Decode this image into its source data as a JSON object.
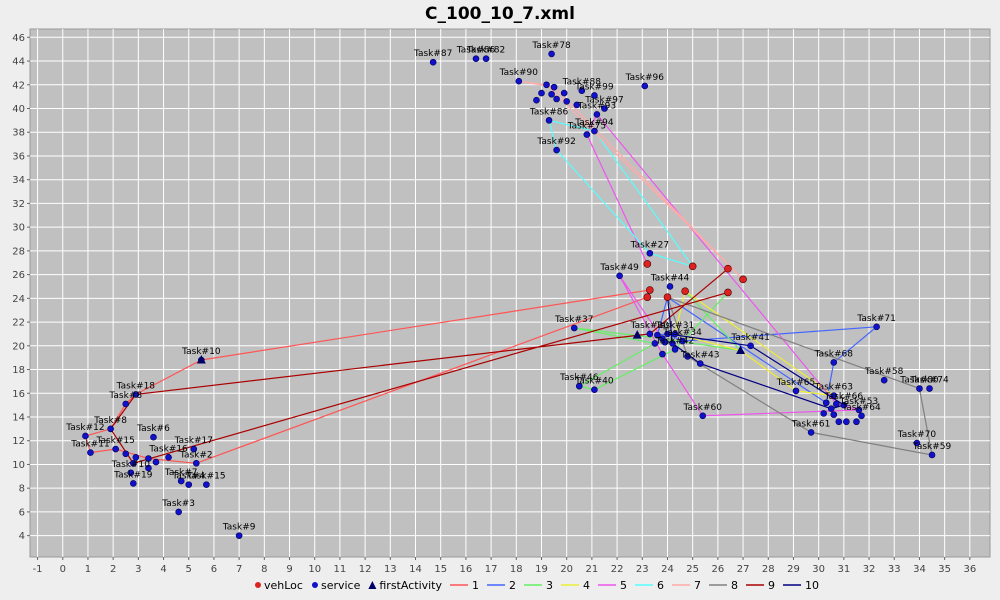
{
  "chart_data": {
    "type": "scatter",
    "title": "C_100_10_7.xml",
    "xlabel": "",
    "ylabel": "",
    "xlim": [
      -1.3,
      36.8
    ],
    "ylim": [
      2.2,
      46.7
    ],
    "xticks": [
      "-1",
      "0",
      "1",
      "2",
      "3",
      "4",
      "5",
      "6",
      "7",
      "8",
      "9",
      "10",
      "11",
      "12",
      "13",
      "14",
      "15",
      "16",
      "17",
      "18",
      "19",
      "20",
      "21",
      "22",
      "23",
      "24",
      "25",
      "26",
      "27",
      "28",
      "29",
      "30",
      "31",
      "32",
      "33",
      "34",
      "35",
      "36"
    ],
    "yticks": [
      "4",
      "6",
      "8",
      "10",
      "12",
      "14",
      "16",
      "18",
      "20",
      "22",
      "24",
      "26",
      "28",
      "30",
      "32",
      "34",
      "36",
      "38",
      "40",
      "42",
      "44",
      "46"
    ],
    "grid": true,
    "legend_position": "bottom",
    "colors": {
      "plot_bg": "#c0c0c0",
      "grid": "#ffffff",
      "vehLoc": "#ff0000",
      "service": "#0000ff",
      "firstActivity": "#00008b",
      "routes": {
        "1": "#ff5555",
        "2": "#4466ff",
        "3": "#66ee66",
        "4": "#eeee33",
        "5": "#ee55ee",
        "6": "#55ffff",
        "7": "#ffaaaa",
        "8": "#808080",
        "9": "#aa0000",
        "10": "#000080"
      }
    },
    "legend": [
      {
        "label": "vehLoc",
        "kind": "dot",
        "color": "#dd2222"
      },
      {
        "label": "service",
        "kind": "dot",
        "color": "#1111cc"
      },
      {
        "label": "firstActivity",
        "kind": "tri",
        "color": "#000066"
      },
      {
        "label": "1",
        "kind": "line",
        "color": "#ff5555"
      },
      {
        "label": "2",
        "kind": "line",
        "color": "#4466ff"
      },
      {
        "label": "3",
        "kind": "line",
        "color": "#66ee66"
      },
      {
        "label": "4",
        "kind": "line",
        "color": "#eeee33"
      },
      {
        "label": "5",
        "kind": "line",
        "color": "#ee55ee"
      },
      {
        "label": "6",
        "kind": "line",
        "color": "#55ffff"
      },
      {
        "label": "7",
        "kind": "line",
        "color": "#ffaaaa"
      },
      {
        "label": "8",
        "kind": "line",
        "color": "#808080"
      },
      {
        "label": "9",
        "kind": "line",
        "color": "#aa0000"
      },
      {
        "label": "10",
        "kind": "line",
        "color": "#000080"
      }
    ],
    "vehLoc": [
      [
        23.2,
        26.9
      ],
      [
        25.0,
        26.7
      ],
      [
        26.4,
        26.5
      ],
      [
        27.0,
        25.6
      ],
      [
        23.3,
        24.7
      ],
      [
        24.7,
        24.6
      ],
      [
        26.4,
        24.5
      ],
      [
        23.2,
        24.1
      ],
      [
        24.0,
        24.1
      ]
    ],
    "first_activity": [
      [
        5.5,
        18.8
      ],
      [
        22.8,
        20.9
      ],
      [
        26.9,
        19.6
      ]
    ],
    "services": [
      {
        "label": "Task#87",
        "x": 14.7,
        "y": 43.9
      },
      {
        "label": "Task#86",
        "x": 16.4,
        "y": 44.2
      },
      {
        "label": "Task#82",
        "x": 16.8,
        "y": 44.2
      },
      {
        "label": "Task#78",
        "x": 19.4,
        "y": 44.6
      },
      {
        "label": "Task#90",
        "x": 18.1,
        "y": 42.3
      },
      {
        "label": "Task#96",
        "x": 23.1,
        "y": 41.9
      },
      {
        "label": "Task#88",
        "x": 20.6,
        "y": 41.5
      },
      {
        "label": "",
        "x": 19.2,
        "y": 42.0
      },
      {
        "label": "",
        "x": 19.5,
        "y": 41.8
      },
      {
        "label": "Task#99",
        "x": 21.1,
        "y": 41.1
      },
      {
        "label": "",
        "x": 19.0,
        "y": 41.3
      },
      {
        "label": "",
        "x": 19.4,
        "y": 41.2
      },
      {
        "label": "",
        "x": 19.9,
        "y": 41.3
      },
      {
        "label": "",
        "x": 18.8,
        "y": 40.7
      },
      {
        "label": "",
        "x": 19.6,
        "y": 40.8
      },
      {
        "label": "",
        "x": 20.0,
        "y": 40.6
      },
      {
        "label": "",
        "x": 20.4,
        "y": 40.3
      },
      {
        "label": "Task#97",
        "x": 21.5,
        "y": 40.0
      },
      {
        "label": "Task#93",
        "x": 21.2,
        "y": 39.5
      },
      {
        "label": "Task#86",
        "x": 19.3,
        "y": 39.0
      },
      {
        "label": "Task#94",
        "x": 21.1,
        "y": 38.1
      },
      {
        "label": "Task#75",
        "x": 20.8,
        "y": 37.8
      },
      {
        "label": "Task#92",
        "x": 19.6,
        "y": 36.5
      },
      {
        "label": "Task#27",
        "x": 23.3,
        "y": 27.8
      },
      {
        "label": "Task#49",
        "x": 22.1,
        "y": 25.9
      },
      {
        "label": "Task#44",
        "x": 24.1,
        "y": 25.0
      },
      {
        "label": "Task#71",
        "x": 32.3,
        "y": 21.6
      },
      {
        "label": "Task#37",
        "x": 20.3,
        "y": 21.5
      },
      {
        "label": "Task#30",
        "x": 23.3,
        "y": 21.0
      },
      {
        "label": "Task#31",
        "x": 24.3,
        "y": 21.0
      },
      {
        "label": "",
        "x": 23.6,
        "y": 20.9
      },
      {
        "label": "",
        "x": 24.0,
        "y": 21.0
      },
      {
        "label": "",
        "x": 23.8,
        "y": 20.6
      },
      {
        "label": "Task#34",
        "x": 24.6,
        "y": 20.4
      },
      {
        "label": "",
        "x": 23.5,
        "y": 20.2
      },
      {
        "label": "",
        "x": 23.9,
        "y": 20.3
      },
      {
        "label": "",
        "x": 24.2,
        "y": 20.2
      },
      {
        "label": "Task#41",
        "x": 27.3,
        "y": 20.0
      },
      {
        "label": "Task#42",
        "x": 24.3,
        "y": 19.7
      },
      {
        "label": "Task#43",
        "x": 25.3,
        "y": 18.5
      },
      {
        "label": "",
        "x": 23.8,
        "y": 19.3
      },
      {
        "label": "",
        "x": 24.8,
        "y": 19.1
      },
      {
        "label": "Task#68",
        "x": 30.6,
        "y": 18.6
      },
      {
        "label": "Task#58",
        "x": 32.6,
        "y": 17.1
      },
      {
        "label": "Task#80",
        "x": 34.0,
        "y": 16.4
      },
      {
        "label": "Task#74",
        "x": 34.4,
        "y": 16.4
      },
      {
        "label": "Task#46",
        "x": 20.5,
        "y": 16.6
      },
      {
        "label": "Task#40",
        "x": 21.1,
        "y": 16.3
      },
      {
        "label": "Task#65",
        "x": 29.1,
        "y": 16.2
      },
      {
        "label": "Task#63",
        "x": 30.6,
        "y": 15.8
      },
      {
        "label": "",
        "x": 30.3,
        "y": 15.2
      },
      {
        "label": "",
        "x": 30.7,
        "y": 15.1
      },
      {
        "label": "Task#66",
        "x": 31.0,
        "y": 15.0
      },
      {
        "label": "",
        "x": 30.5,
        "y": 14.7
      },
      {
        "label": "Task#53",
        "x": 31.6,
        "y": 14.6
      },
      {
        "label": "",
        "x": 30.2,
        "y": 14.3
      },
      {
        "label": "",
        "x": 30.6,
        "y": 14.2
      },
      {
        "label": "Task#64",
        "x": 31.7,
        "y": 14.1
      },
      {
        "label": "Task#60",
        "x": 25.4,
        "y": 14.1
      },
      {
        "label": "",
        "x": 30.8,
        "y": 13.6
      },
      {
        "label": "",
        "x": 31.1,
        "y": 13.6
      },
      {
        "label": "",
        "x": 31.5,
        "y": 13.6
      },
      {
        "label": "Task#61",
        "x": 29.7,
        "y": 12.7
      },
      {
        "label": "Task#70",
        "x": 33.9,
        "y": 11.8
      },
      {
        "label": "Task#59",
        "x": 34.5,
        "y": 10.8
      },
      {
        "label": "Task#18",
        "x": 2.9,
        "y": 15.9
      },
      {
        "label": "Task#8",
        "x": 2.5,
        "y": 15.1
      },
      {
        "label": "Task#8",
        "x": 1.9,
        "y": 13.0
      },
      {
        "label": "Task#12",
        "x": 0.9,
        "y": 12.4
      },
      {
        "label": "Task#6",
        "x": 3.6,
        "y": 12.3
      },
      {
        "label": "Task#11",
        "x": 1.1,
        "y": 11.0
      },
      {
        "label": "Task#15",
        "x": 2.1,
        "y": 11.3
      },
      {
        "label": "Task#17",
        "x": 5.2,
        "y": 11.3
      },
      {
        "label": "Task#16",
        "x": 4.2,
        "y": 10.6
      },
      {
        "label": "Task#2",
        "x": 5.3,
        "y": 10.1
      },
      {
        "label": "",
        "x": 2.5,
        "y": 10.9
      },
      {
        "label": "",
        "x": 2.9,
        "y": 10.6
      },
      {
        "label": "",
        "x": 3.4,
        "y": 10.5
      },
      {
        "label": "",
        "x": 2.8,
        "y": 10.1
      },
      {
        "label": "",
        "x": 3.7,
        "y": 10.2
      },
      {
        "label": "",
        "x": 3.4,
        "y": 9.7
      },
      {
        "label": "Task#10",
        "x": 2.7,
        "y": 9.3
      },
      {
        "label": "Task#7",
        "x": 4.7,
        "y": 8.6
      },
      {
        "label": "Task#4",
        "x": 5.0,
        "y": 8.3
      },
      {
        "label": "Task#15",
        "x": 5.7,
        "y": 8.3
      },
      {
        "label": "Task#19",
        "x": 2.8,
        "y": 8.4
      },
      {
        "label": "Task#3",
        "x": 4.6,
        "y": 6.0
      },
      {
        "label": "Task#9",
        "x": 7.0,
        "y": 4.0
      },
      {
        "label": "Task#10",
        "x": 5.5,
        "y": 18.8
      }
    ],
    "routes": [
      {
        "name": "1",
        "color": "#ff5555",
        "points": [
          [
            23.3,
            24.7
          ],
          [
            5.5,
            18.8
          ],
          [
            2.9,
            15.9
          ],
          [
            2.5,
            15.1
          ],
          [
            1.9,
            13.0
          ],
          [
            0.9,
            12.4
          ],
          [
            1.1,
            11.0
          ],
          [
            2.1,
            11.3
          ],
          [
            3.4,
            10.5
          ],
          [
            5.3,
            10.1
          ],
          [
            23.2,
            24.1
          ]
        ]
      },
      {
        "name": "2",
        "color": "#4466ff",
        "points": [
          [
            24.0,
            24.1
          ],
          [
            23.6,
            20.9
          ],
          [
            24.0,
            21.0
          ],
          [
            24.6,
            20.4
          ],
          [
            32.3,
            21.6
          ],
          [
            30.6,
            18.6
          ],
          [
            30.3,
            15.2
          ],
          [
            24.0,
            24.1
          ]
        ]
      },
      {
        "name": "3",
        "color": "#66ee66",
        "points": [
          [
            26.4,
            24.5
          ],
          [
            24.3,
            19.7
          ],
          [
            21.1,
            16.3
          ],
          [
            20.5,
            16.6
          ],
          [
            23.5,
            20.2
          ],
          [
            20.3,
            21.5
          ],
          [
            23.8,
            20.6
          ],
          [
            26.9,
            19.6
          ],
          [
            24.7,
            24.6
          ]
        ]
      },
      {
        "name": "4",
        "color": "#eeee33",
        "points": [
          [
            24.7,
            24.6
          ],
          [
            24.3,
            21.0
          ],
          [
            26.9,
            19.6
          ],
          [
            29.1,
            16.2
          ],
          [
            30.6,
            15.8
          ],
          [
            24.7,
            24.6
          ]
        ]
      },
      {
        "name": "5",
        "color": "#ee55ee",
        "points": [
          [
            23.2,
            26.9
          ],
          [
            20.8,
            37.8
          ],
          [
            21.2,
            39.5
          ],
          [
            30.7,
            15.1
          ],
          [
            31.6,
            14.6
          ],
          [
            25.4,
            14.1
          ],
          [
            23.8,
            19.3
          ],
          [
            22.1,
            25.9
          ],
          [
            23.8,
            20.6
          ]
        ]
      },
      {
        "name": "6",
        "color": "#55ffff",
        "points": [
          [
            25.0,
            26.7
          ],
          [
            23.3,
            27.8
          ],
          [
            19.6,
            36.5
          ],
          [
            19.3,
            39.0
          ],
          [
            21.1,
            38.1
          ],
          [
            25.0,
            26.7
          ]
        ]
      },
      {
        "name": "7",
        "color": "#ffaaaa",
        "points": [
          [
            27.0,
            25.6
          ],
          [
            19.2,
            42.0
          ],
          [
            18.1,
            42.3
          ],
          [
            19.5,
            41.8
          ],
          [
            27.0,
            25.6
          ]
        ]
      },
      {
        "name": "8",
        "color": "#808080",
        "points": [
          [
            24.0,
            24.1
          ],
          [
            34.0,
            16.4
          ],
          [
            34.5,
            10.8
          ],
          [
            29.7,
            12.7
          ],
          [
            24.8,
            19.1
          ],
          [
            24.0,
            24.1
          ]
        ]
      },
      {
        "name": "9",
        "color": "#aa0000",
        "points": [
          [
            26.4,
            26.5
          ],
          [
            23.3,
            21.0
          ],
          [
            2.9,
            15.9
          ],
          [
            1.9,
            13.0
          ],
          [
            2.8,
            10.1
          ],
          [
            26.4,
            24.5
          ]
        ]
      },
      {
        "name": "10",
        "color": "#000080",
        "points": [
          [
            24.0,
            24.1
          ],
          [
            24.2,
            20.2
          ],
          [
            25.3,
            18.5
          ],
          [
            30.5,
            14.7
          ],
          [
            31.0,
            15.0
          ],
          [
            27.3,
            20.0
          ],
          [
            24.0,
            21.0
          ]
        ]
      }
    ]
  }
}
